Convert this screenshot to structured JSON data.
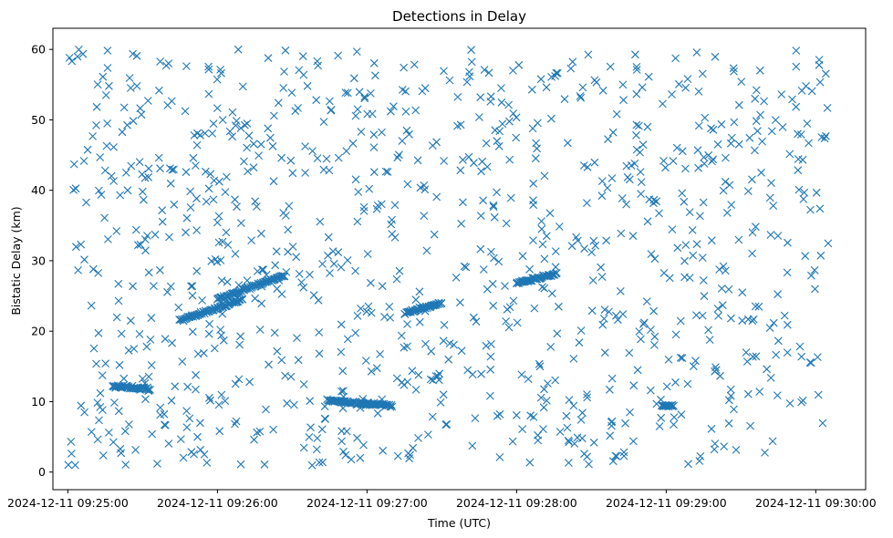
{
  "chart_data": {
    "type": "scatter",
    "title": "Detections in Delay",
    "xlabel": "Time (UTC)",
    "ylabel": "Bistatic Delay (km)",
    "x_unit": "seconds",
    "x_tick_labels": [
      "2024-12-11 09:25:00",
      "2024-12-11 09:26:00",
      "2024-12-11 09:27:00",
      "2024-12-11 09:28:00",
      "2024-12-11 09:29:00",
      "2024-12-11 09:30:00"
    ],
    "y_ticks": [
      0,
      10,
      20,
      30,
      40,
      50,
      60
    ],
    "xlim": [
      "2024-12-11 09:24:54",
      "2024-12-11 09:30:20"
    ],
    "ylim": [
      -2.5,
      63
    ],
    "grid": false,
    "marker": "x",
    "color": "#1f77b4",
    "tracks": [
      {
        "x": [
          "2024-12-11 09:25:18",
          "2024-12-11 09:25:33"
        ],
        "y": [
          12.2,
          11.8
        ]
      },
      {
        "x": [
          "2024-12-11 09:25:45",
          "2024-12-11 09:26:10"
        ],
        "y": [
          21.5,
          24.5
        ]
      },
      {
        "x": [
          "2024-12-11 09:26:00",
          "2024-12-11 09:26:27"
        ],
        "y": [
          24.5,
          28.0
        ]
      },
      {
        "x": [
          "2024-12-11 09:26:44",
          "2024-12-11 09:27:00"
        ],
        "y": [
          10.2,
          9.6
        ]
      },
      {
        "x": [
          "2024-12-11 09:26:57",
          "2024-12-11 09:27:10"
        ],
        "y": [
          9.8,
          9.4
        ]
      },
      {
        "x": [
          "2024-12-11 09:27:15",
          "2024-12-11 09:27:30"
        ],
        "y": [
          22.5,
          24.0
        ]
      },
      {
        "x": [
          "2024-12-11 09:28:00",
          "2024-12-11 09:28:16"
        ],
        "y": [
          26.8,
          28.2
        ]
      },
      {
        "x": [
          "2024-12-11 09:28:58",
          "2024-12-11 09:29:03"
        ],
        "y": [
          9.4,
          9.4
        ]
      }
    ],
    "clutter": {
      "count": 1000,
      "x_range": [
        "2024-12-11 09:25:00",
        "2024-12-11 09:30:05"
      ],
      "y_range": [
        0.8,
        60.0
      ],
      "distribution": "uniform"
    }
  }
}
